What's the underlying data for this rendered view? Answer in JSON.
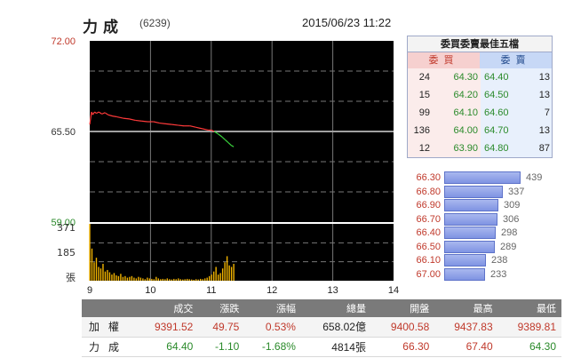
{
  "header": {
    "name": "力成",
    "code": "(6239)",
    "datetime": "2015/06/23 11:22"
  },
  "chart_data": {
    "type": "line",
    "price_axis": {
      "min": 59.0,
      "max": 72.0,
      "ref": 65.5,
      "labels": [
        "72.00",
        "65.50",
        "59.00"
      ]
    },
    "volume_axis": {
      "max": 371,
      "labels": [
        "371",
        "185",
        "張"
      ]
    },
    "x_hours": [
      "9",
      "10",
      "11",
      "12",
      "13",
      "14"
    ],
    "session": {
      "start_hour": 9.0,
      "end_hour": 14.0
    },
    "price_series": [
      [
        9.0,
        66.0
      ],
      [
        9.03,
        66.9
      ],
      [
        9.05,
        66.7
      ],
      [
        9.08,
        66.9
      ],
      [
        9.11,
        66.8
      ],
      [
        9.15,
        66.9
      ],
      [
        9.2,
        66.75
      ],
      [
        9.25,
        66.85
      ],
      [
        9.3,
        66.7
      ],
      [
        9.38,
        66.6
      ],
      [
        9.45,
        66.55
      ],
      [
        9.55,
        66.45
      ],
      [
        9.65,
        66.4
      ],
      [
        9.75,
        66.3
      ],
      [
        9.85,
        66.25
      ],
      [
        9.95,
        66.2
      ],
      [
        10.05,
        66.2
      ],
      [
        10.15,
        66.1
      ],
      [
        10.25,
        66.05
      ],
      [
        10.35,
        66.0
      ],
      [
        10.45,
        65.95
      ],
      [
        10.55,
        65.9
      ],
      [
        10.65,
        65.9
      ],
      [
        10.75,
        65.8
      ],
      [
        10.85,
        65.7
      ],
      [
        10.95,
        65.6
      ],
      [
        11.0,
        65.6
      ],
      [
        11.05,
        65.5
      ],
      [
        11.12,
        65.3
      ],
      [
        11.18,
        65.1
      ],
      [
        11.23,
        64.9
      ],
      [
        11.28,
        64.7
      ],
      [
        11.33,
        64.5
      ],
      [
        11.37,
        64.4
      ]
    ],
    "volume_series": [
      371,
      210,
      120,
      150,
      90,
      80,
      110,
      60,
      70,
      55,
      40,
      50,
      35,
      30,
      45,
      25,
      30,
      20,
      25,
      30,
      20,
      15,
      25,
      20,
      15,
      10,
      20,
      15,
      12,
      10,
      25,
      15,
      10,
      12,
      10,
      15,
      10,
      8,
      12,
      10,
      15,
      10,
      8,
      10,
      12,
      10,
      8,
      6,
      10,
      8,
      12,
      10,
      15,
      20,
      30,
      40,
      60,
      90,
      40,
      50,
      80,
      120,
      160,
      100,
      90,
      110
    ]
  },
  "order_book": {
    "title": "委買委賣最佳五檔",
    "bid_header": "委買",
    "ask_header": "委賣",
    "rows": [
      {
        "bid_qty": "24",
        "bid_price": "64.30",
        "ask_price": "64.40",
        "ask_qty": "13"
      },
      {
        "bid_qty": "15",
        "bid_price": "64.20",
        "ask_price": "64.50",
        "ask_qty": "13"
      },
      {
        "bid_qty": "99",
        "bid_price": "64.10",
        "ask_price": "64.60",
        "ask_qty": "7"
      },
      {
        "bid_qty": "136",
        "bid_price": "64.00",
        "ask_price": "64.70",
        "ask_qty": "13"
      },
      {
        "bid_qty": "12",
        "bid_price": "63.90",
        "ask_price": "64.80",
        "ask_qty": "87"
      }
    ]
  },
  "distribution": {
    "max": 439,
    "rows": [
      {
        "price": "66.30",
        "volume": 439
      },
      {
        "price": "66.80",
        "volume": 337
      },
      {
        "price": "66.90",
        "volume": 309
      },
      {
        "price": "66.70",
        "volume": 306
      },
      {
        "price": "66.40",
        "volume": 298
      },
      {
        "price": "66.50",
        "volume": 289
      },
      {
        "price": "66.10",
        "volume": 238
      },
      {
        "price": "67.00",
        "volume": 233
      }
    ]
  },
  "summary": {
    "headers": [
      "成交",
      "漲跌",
      "漲幅",
      "總量",
      "開盤",
      "最高",
      "最低"
    ],
    "rows": [
      {
        "name": "加權",
        "values": [
          "9391.52",
          "49.75",
          "0.53%",
          "658.02億",
          "9400.58",
          "9437.83",
          "9389.81"
        ]
      },
      {
        "name": "力成",
        "values": [
          "64.40",
          "-1.10",
          "-1.68%",
          "4814張",
          "66.30",
          "67.40",
          "64.30"
        ]
      }
    ]
  },
  "colors": {
    "chart_bg": "#000000",
    "price_line_up": "#ff3a3a",
    "price_line_down": "#39d23c",
    "ref_line": "#a0a0a0",
    "volume_bar": "#f2b400",
    "grid": "#777777"
  }
}
